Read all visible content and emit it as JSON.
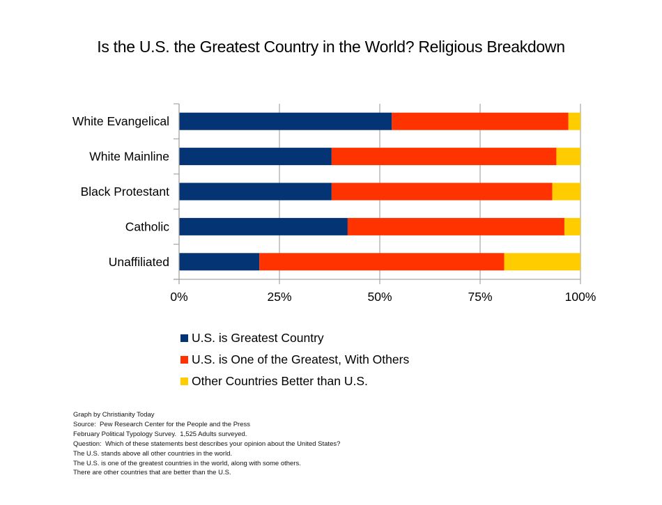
{
  "chart_data": {
    "type": "bar",
    "orientation": "horizontal",
    "stacked": "percent",
    "title": "Is the U.S. the Greatest Country in the World?  Religious Breakdown",
    "xlabel": "",
    "ylabel": "",
    "xlim": [
      0,
      100
    ],
    "x_ticks": [
      "0%",
      "25%",
      "50%",
      "75%",
      "100%"
    ],
    "x_tick_values": [
      0,
      25,
      50,
      75,
      100
    ],
    "grid": "vertical",
    "legend_position": "bottom-left",
    "categories": [
      "White Evangelical",
      "White Mainline",
      "Black Protestant",
      "Catholic",
      "Unaffiliated"
    ],
    "series": [
      {
        "name": "U.S. is Greatest Country",
        "color": "#043474",
        "values": [
          53,
          38,
          38,
          42,
          20
        ]
      },
      {
        "name": "U.S. is One of the Greatest, With Others",
        "color": "#ff3300",
        "values": [
          44,
          56,
          55,
          54,
          61
        ]
      },
      {
        "name": "Other Countries Better than U.S.",
        "color": "#ffcc00",
        "values": [
          3,
          6,
          7,
          4,
          19
        ]
      }
    ]
  },
  "footnotes": [
    "Graph by Christianity Today",
    "Source:  Pew Research Center for the People and the Press",
    "February Political Typology Survey.  1,525 Adults surveyed.",
    "Question:  Which of these statements best describes your opinion about the United States?",
    "The U.S. stands above all other countries in the world.",
    "The U.S. is one of the greatest countries in the world, along with some others.",
    "There are other countries that are better than the U.S."
  ],
  "colors": {
    "gridline": "#a6a6a6",
    "axis": "#a6a6a6"
  }
}
